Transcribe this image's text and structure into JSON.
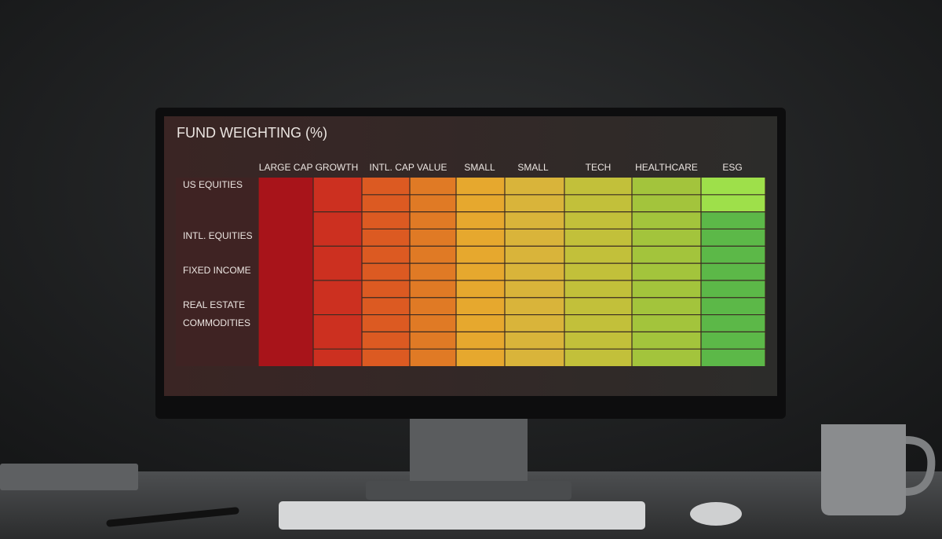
{
  "screen": {
    "title": "FUND WEIGHTING (%)",
    "columns": [
      "LARGE CAP GROWTH",
      "INTL. CAP VALUE",
      "SMALL",
      "SMALL",
      "TECH",
      "HEALTHCARE",
      "ESG"
    ],
    "rows": [
      "US EQUITIES",
      "INTL. EQUITIES",
      "FIXED INCOME",
      "REAL ESTATE",
      "COMMODITIES"
    ]
  }
}
